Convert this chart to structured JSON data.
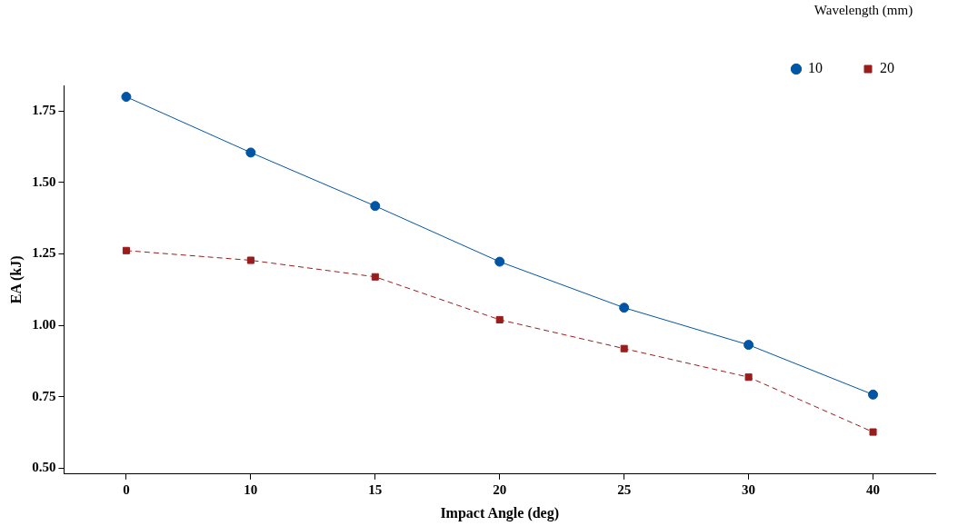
{
  "chart_data": {
    "type": "line",
    "xlabel": "Impact Angle (deg)",
    "ylabel": "EA (kJ)",
    "legend_title": "Wavelength (mm)",
    "categories": [
      "0",
      "10",
      "15",
      "20",
      "25",
      "30",
      "40"
    ],
    "series": [
      {
        "name": "10",
        "color": "#0055a5",
        "marker": "circle",
        "line_style": "solid",
        "values": [
          1.8,
          1.605,
          1.418,
          1.223,
          1.062,
          0.932,
          0.758
        ]
      },
      {
        "name": "20",
        "color": "#9b1c1c",
        "marker": "square",
        "line_style": "dashed",
        "values": [
          1.262,
          1.228,
          1.17,
          1.02,
          0.919,
          0.819,
          0.627
        ]
      }
    ],
    "ylim": [
      0.48,
      1.84
    ],
    "yticks": [
      {
        "value": 0.5,
        "label": "0.50"
      },
      {
        "value": 0.75,
        "label": "0.75"
      },
      {
        "value": 1.0,
        "label": "1.00"
      },
      {
        "value": 1.25,
        "label": "1.25"
      },
      {
        "value": 1.5,
        "label": "1.50"
      },
      {
        "value": 1.75,
        "label": "1.75"
      }
    ],
    "grid": false,
    "legend": "top right"
  }
}
